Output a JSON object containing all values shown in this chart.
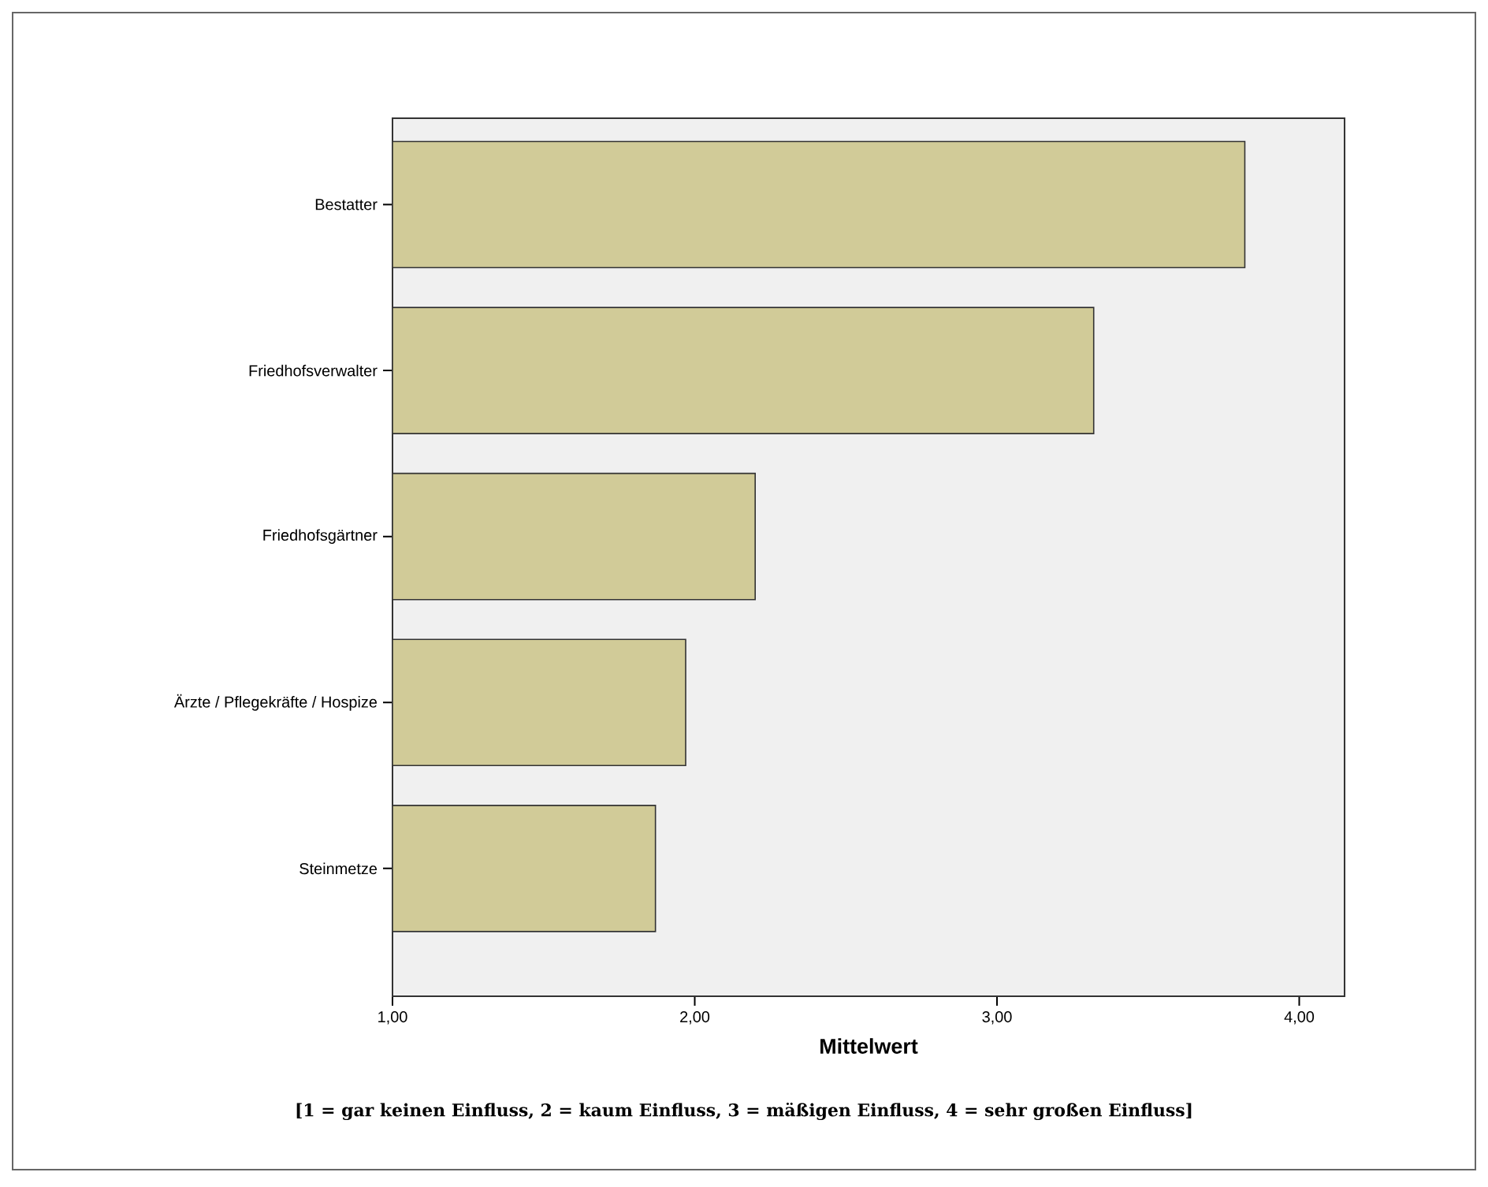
{
  "chart_data": {
    "type": "bar",
    "orientation": "horizontal",
    "xlabel": "Mittelwert",
    "categories": [
      "Bestatter",
      "Friedhofsverwalter",
      "Friedhofsgärtner",
      "Ärzte / Pflegekräfte / Hospize",
      "Steinmetze"
    ],
    "values": [
      3.82,
      3.32,
      2.2,
      1.97,
      1.87
    ],
    "color": "#d1cb98",
    "xlim": [
      1,
      4.15
    ],
    "xticks": [
      {
        "value": 1,
        "label": "1,00"
      },
      {
        "value": 2,
        "label": "2,00"
      },
      {
        "value": 3,
        "label": "3,00"
      },
      {
        "value": 4,
        "label": "4,00"
      }
    ],
    "annotations": [
      "[1 = gar keinen Einfluss, 2 = kaum Einfluss, 3 = mäßigen Einfluss, 4 = sehr großen Einfluss]"
    ]
  }
}
